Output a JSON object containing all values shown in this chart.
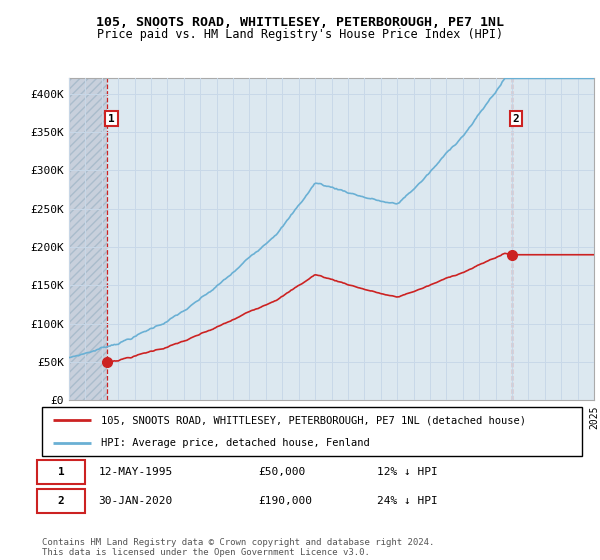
{
  "title_line1": "105, SNOOTS ROAD, WHITTLESEY, PETERBOROUGH, PE7 1NL",
  "title_line2": "Price paid vs. HM Land Registry's House Price Index (HPI)",
  "ylim": [
    0,
    420000
  ],
  "yticks": [
    0,
    50000,
    100000,
    150000,
    200000,
    250000,
    300000,
    350000,
    400000
  ],
  "ytick_labels": [
    "£0",
    "£50K",
    "£100K",
    "£150K",
    "£200K",
    "£250K",
    "£300K",
    "£350K",
    "£400K"
  ],
  "hpi_color": "#6ab0d4",
  "price_color": "#cc2222",
  "vline_color": "#cc2222",
  "grid_color": "#c8d8e8",
  "plot_bg_color": "#dce8f0",
  "hatch_bg_color": "#c8d0dc",
  "background_color": "#ffffff",
  "sale1_price": 50000,
  "sale1_date": "12-MAY-1995",
  "sale1_label": "12% ↓ HPI",
  "sale2_price": 190000,
  "sale2_date": "30-JAN-2020",
  "sale2_label": "24% ↓ HPI",
  "legend_line1": "105, SNOOTS ROAD, WHITTLESEY, PETERBOROUGH, PE7 1NL (detached house)",
  "legend_line2": "HPI: Average price, detached house, Fenland",
  "footer": "Contains HM Land Registry data © Crown copyright and database right 2024.\nThis data is licensed under the Open Government Licence v3.0.",
  "xstart_year": 1993,
  "xend_year": 2025
}
